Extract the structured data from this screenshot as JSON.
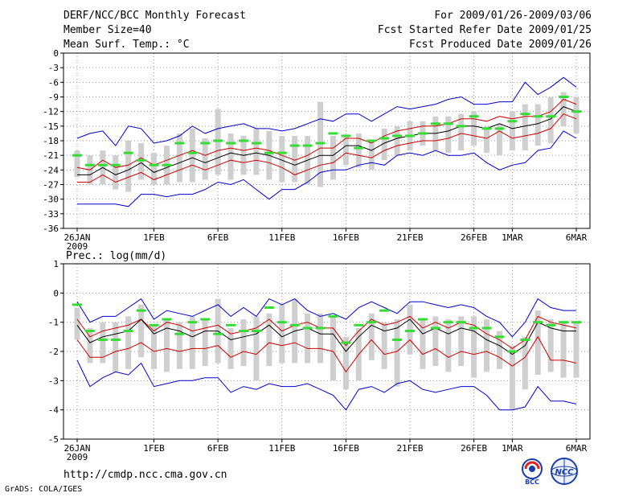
{
  "header": {
    "title": "DERF/NCC/BCC Monthly Forecast",
    "member_size": "Member Size=40",
    "variable": "Mean Surf. Temp.: °C",
    "period": "For 2009/01/26-2009/03/06",
    "started": "Fcst Started Refer Date 2009/01/25",
    "produced": "Fcst Produced Date 2009/01/26"
  },
  "footer": {
    "url": "http://cmdp.ncc.cma.gov.cn",
    "credit": "GrADS: COLA/IGES",
    "logo_left_text": "BCC",
    "logo_right_text": "NCC"
  },
  "colors": {
    "box": "#cfcfcf",
    "mean": "#000000",
    "std_band": "#cc0000",
    "range": "#0000cc",
    "observed": "#33dd33",
    "grid": "#999999"
  },
  "chart_data": [
    {
      "type": "line",
      "title": "",
      "ylabel": "Mean Surf. Temp.: °C",
      "ylim": [
        -36,
        0
      ],
      "yticks": [
        0,
        -3,
        -6,
        -9,
        -12,
        -15,
        -18,
        -21,
        -24,
        -27,
        -30,
        -33,
        -36
      ],
      "xlim": [
        1,
        40
      ],
      "xticks": [
        {
          "day": 1,
          "label": "26JAN",
          "sub": "2009"
        },
        {
          "day": 7,
          "label": "1FEB"
        },
        {
          "day": 12,
          "label": "6FEB"
        },
        {
          "day": 17,
          "label": "11FEB"
        },
        {
          "day": 22,
          "label": "16FEB"
        },
        {
          "day": 27,
          "label": "21FEB"
        },
        {
          "day": 32,
          "label": "26FEB"
        },
        {
          "day": 35,
          "label": "1MAR"
        },
        {
          "day": 40,
          "label": "6MAR"
        }
      ],
      "series": [
        {
          "name": "ensemble mean",
          "values": [
            -25,
            -25,
            -23.5,
            -25,
            -24,
            -22.5,
            -24.5,
            -23.5,
            -22.5,
            -21.5,
            -22.5,
            -21.5,
            -20.5,
            -21,
            -20.5,
            -21,
            -22,
            -23,
            -22,
            -21,
            -21,
            -19,
            -19,
            -20,
            -18.5,
            -17.5,
            -17,
            -16.5,
            -16.5,
            -16,
            -15,
            -15,
            -15.5,
            -14.5,
            -15.5,
            -15,
            -14.5,
            -13.5,
            -11,
            -12
          ]
        },
        {
          "name": "mean + std",
          "values": [
            -23.5,
            -24,
            -22,
            -23.5,
            -23,
            -21.5,
            -23,
            -22,
            -21,
            -20,
            -21,
            -20,
            -19.5,
            -20,
            -19.5,
            -20,
            -21,
            -22,
            -21,
            -19.5,
            -19.5,
            -17.5,
            -17.5,
            -18.5,
            -17,
            -16,
            -15.5,
            -15,
            -15,
            -14.5,
            -13.5,
            -13.5,
            -14,
            -13,
            -13.5,
            -13,
            -13,
            -12,
            -9.5,
            -10.5
          ]
        },
        {
          "name": "mean - std",
          "values": [
            -26.5,
            -26.5,
            -25,
            -26.5,
            -25.5,
            -24.5,
            -26,
            -25,
            -24,
            -23,
            -24,
            -23,
            -22,
            -22.5,
            -22,
            -22.5,
            -23.5,
            -25,
            -24,
            -23,
            -22.5,
            -20.5,
            -21,
            -21.5,
            -20,
            -19,
            -18.5,
            -18,
            -18,
            -17.5,
            -16.5,
            -17,
            -17.5,
            -16,
            -17.5,
            -17,
            -16.5,
            -15.5,
            -12.5,
            -13.5
          ]
        },
        {
          "name": "ensemble max",
          "values": [
            -17.5,
            -16.5,
            -16,
            -19,
            -15,
            -15.5,
            -18.5,
            -18,
            -17,
            -15,
            -16.5,
            -15.5,
            -15,
            -14.5,
            -15.5,
            -15.5,
            -16,
            -15.5,
            -14.5,
            -13.5,
            -14,
            -12.5,
            -12.5,
            -14,
            -12.5,
            -11,
            -11.5,
            -11,
            -10.5,
            -9.5,
            -9,
            -10.5,
            -10.5,
            -10,
            -10,
            -6,
            -8.5,
            -7,
            -5,
            -7
          ]
        },
        {
          "name": "ensemble min",
          "values": [
            -31,
            -31,
            -31,
            -31,
            -31.5,
            -29,
            -29,
            -29.5,
            -29,
            -29,
            -28,
            -26.5,
            -27,
            -26,
            -28,
            -30,
            -28,
            -28,
            -26.5,
            -24.5,
            -24,
            -24,
            -23,
            -22.5,
            -23,
            -21,
            -20.5,
            -21,
            -20,
            -21,
            -21,
            -20.5,
            -22.5,
            -24,
            -23,
            -22.5,
            -20,
            -19.5,
            -16,
            -17.5
          ]
        },
        {
          "name": "box top",
          "values": [
            -20,
            -21,
            -20,
            -21,
            -18,
            -18.5,
            -20.5,
            -19,
            -16.5,
            -15.5,
            -17.5,
            -11.5,
            -16.5,
            -17,
            -15.5,
            -16,
            -17,
            -17,
            -17,
            -10,
            -17,
            -17,
            -16.5,
            -18,
            -15.5,
            -15,
            -14,
            -14,
            -13,
            -13,
            -12.5,
            -12,
            -15,
            -14.5,
            -12,
            -10.5,
            -10.5,
            -9,
            -8,
            -9
          ]
        },
        {
          "name": "box bottom",
          "values": [
            -25.5,
            -27,
            -27,
            -28,
            -28.5,
            -26,
            -27,
            -27,
            -26.5,
            -26.5,
            -26,
            -25,
            -26,
            -25,
            -25,
            -26,
            -26.5,
            -26.5,
            -27,
            -27.5,
            -26,
            -23,
            -23.5,
            -24,
            -22,
            -21,
            -20,
            -19,
            -20,
            -20.5,
            -20,
            -19,
            -20.5,
            -21,
            -20,
            -20,
            -19,
            -18.5,
            -15,
            -16.5
          ]
        },
        {
          "name": "observed",
          "values": [
            -21,
            -23,
            -23,
            -23,
            -20.5,
            -22,
            -23,
            -23,
            -18.5,
            -20.5,
            -18.5,
            -18,
            -18.5,
            -18,
            -18.5,
            -20.5,
            -20.5,
            -19,
            -19,
            -18.5,
            -16.5,
            -17,
            -19.5,
            -18,
            -17.5,
            -17,
            -17,
            -16.5,
            -14.5,
            -14.5,
            -15,
            -13,
            -15.5,
            -15.5,
            -14,
            -12.5,
            -13,
            -13,
            -9,
            -12
          ]
        }
      ]
    },
    {
      "type": "line",
      "title": "Prec.: log(mm/d)",
      "ylabel": "Prec.: log(mm/d)",
      "ylim": [
        -5,
        1
      ],
      "yticks": [
        1,
        0,
        -1,
        -2,
        -3,
        -4,
        -5
      ],
      "xlim": [
        1,
        40
      ],
      "xticks": [
        {
          "day": 1,
          "label": "26JAN",
          "sub": "2009"
        },
        {
          "day": 7,
          "label": "1FEB"
        },
        {
          "day": 12,
          "label": "6FEB"
        },
        {
          "day": 17,
          "label": "11FEB"
        },
        {
          "day": 22,
          "label": "16FEB"
        },
        {
          "day": 27,
          "label": "21FEB"
        },
        {
          "day": 32,
          "label": "26FEB"
        },
        {
          "day": 35,
          "label": "1MAR"
        },
        {
          "day": 40,
          "label": "6MAR"
        }
      ],
      "series": [
        {
          "name": "ensemble mean",
          "values": [
            -1.1,
            -1.7,
            -1.5,
            -1.4,
            -1.3,
            -0.9,
            -1.4,
            -1.2,
            -1.3,
            -1.5,
            -1.3,
            -1.3,
            -1.6,
            -1.5,
            -1.4,
            -1.1,
            -1.5,
            -1.3,
            -1.2,
            -1.4,
            -1.4,
            -2,
            -1.5,
            -1.1,
            -1.3,
            -1.2,
            -0.9,
            -1.4,
            -1.2,
            -1.4,
            -1.2,
            -1.3,
            -1.6,
            -1.8,
            -2.1,
            -1.8,
            -1,
            -1.2,
            -1.3,
            -1.3
          ]
        },
        {
          "name": "mean + std",
          "values": [
            -0.9,
            -1.5,
            -1.3,
            -1.2,
            -1.1,
            -0.9,
            -1.3,
            -1,
            -1.1,
            -1.3,
            -1.2,
            -1.1,
            -1.4,
            -1.3,
            -1.2,
            -0.9,
            -1.3,
            -1.1,
            -1,
            -1.2,
            -1.2,
            -1.8,
            -1.3,
            -0.9,
            -1.1,
            -1,
            -0.8,
            -1.2,
            -1,
            -1.2,
            -1,
            -1.1,
            -1.4,
            -1.6,
            -1.9,
            -1.6,
            -0.8,
            -1,
            -1.1,
            -1.2
          ]
        },
        {
          "name": "mean - std",
          "values": [
            -1.6,
            -2.2,
            -2.2,
            -2,
            -1.9,
            -1.7,
            -2,
            -1.9,
            -2,
            -1.9,
            -1.9,
            -1.8,
            -2.2,
            -2,
            -2.1,
            -1.7,
            -1.8,
            -1.7,
            -1.9,
            -1.9,
            -2,
            -2.7,
            -2.1,
            -1.6,
            -2.1,
            -2,
            -1.6,
            -2.1,
            -1.9,
            -2.2,
            -2,
            -2.1,
            -2,
            -2.2,
            -2.5,
            -2.2,
            -1.5,
            -2.3,
            -2.3,
            -2.4
          ]
        },
        {
          "name": "ensemble max",
          "values": [
            -0.3,
            -1,
            -0.8,
            -0.8,
            -0.5,
            -0.2,
            -0.9,
            -0.6,
            -0.7,
            -0.8,
            -0.6,
            -0.4,
            -0.8,
            -0.5,
            -0.8,
            -0.2,
            -0.4,
            -0.2,
            -0.6,
            -0.8,
            -0.7,
            -0.9,
            -0.5,
            -0.3,
            -0.5,
            -0.7,
            -0.3,
            -0.3,
            -0.4,
            -0.5,
            -0.4,
            -0.5,
            -0.8,
            -1,
            -1.5,
            -1,
            -0.2,
            -0.5,
            -0.6,
            -0.6
          ]
        },
        {
          "name": "ensemble min",
          "values": [
            -2.3,
            -3.2,
            -2.9,
            -2.7,
            -2.8,
            -2.4,
            -3.2,
            -3.1,
            -3,
            -3,
            -2.9,
            -2.9,
            -3.4,
            -3.2,
            -3.3,
            -3.1,
            -3.2,
            -3.2,
            -3.1,
            -3.3,
            -3.5,
            -4,
            -3.3,
            -3.2,
            -3.4,
            -3.1,
            -3,
            -3.3,
            -3.4,
            -3.3,
            -3.2,
            -3.2,
            -3.5,
            -4,
            -4,
            -3.9,
            -3.2,
            -3.7,
            -3.7,
            -3.8
          ]
        },
        {
          "name": "box top",
          "values": [
            -0.5,
            -1.2,
            -1,
            -1,
            -0.8,
            -0.4,
            -1.1,
            -0.9,
            -1,
            -0.8,
            -0.9,
            -0.2,
            -1.2,
            -0.9,
            -0.8,
            -0.7,
            -0.4,
            -0.2,
            -0.7,
            -0.7,
            -0.8,
            -1.5,
            -1.2,
            -0.7,
            -1,
            -0.9,
            -0.4,
            -0.9,
            -0.8,
            -0.9,
            -0.8,
            -0.8,
            -0.9,
            -1.3,
            -1.8,
            -1.5,
            -0.6,
            -0.9,
            -1,
            -1
          ]
        },
        {
          "name": "box bottom",
          "values": [
            -1.6,
            -2.4,
            -2.4,
            -2.7,
            -2.6,
            -2.2,
            -2.6,
            -2.7,
            -2.6,
            -2.6,
            -2.5,
            -2.4,
            -2.6,
            -2.5,
            -3,
            -2.5,
            -2.4,
            -2.4,
            -2.4,
            -2.4,
            -3,
            -3.3,
            -3,
            -2.3,
            -2.6,
            -3.2,
            -2.1,
            -2.6,
            -2.5,
            -2.7,
            -2.5,
            -2.9,
            -2.7,
            -2.6,
            -4,
            -3.3,
            -2.8,
            -2.7,
            -2.9,
            -2.9
          ]
        },
        {
          "name": "observed",
          "values": [
            -0.4,
            -1.3,
            -1.6,
            -1.6,
            -1.3,
            -0.6,
            -1.1,
            -0.9,
            -1.4,
            -1,
            -0.9,
            -1.4,
            -1.1,
            -1.3,
            -1.3,
            -0.5,
            -1,
            -1.1,
            -1.2,
            -1.2,
            -0.8,
            -1.7,
            -1.1,
            -1,
            -0.6,
            -1.6,
            -1.3,
            -0.9,
            -1.2,
            -1,
            -1,
            -1.2,
            -1.2,
            -1.5,
            -2,
            -1.6,
            -1,
            -1.1,
            -1,
            -1
          ]
        }
      ]
    }
  ]
}
